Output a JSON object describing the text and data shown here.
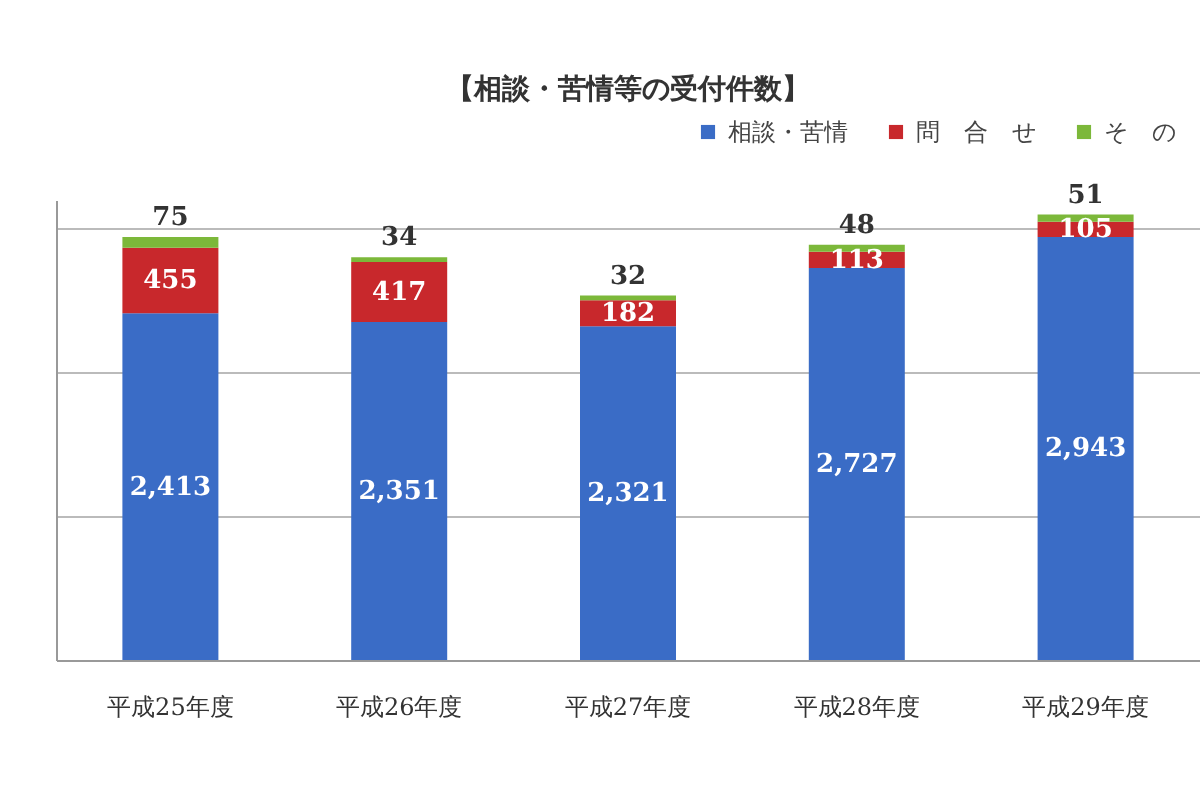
{
  "chart_data": {
    "type": "bar",
    "title": "【相談・苦情等の受付件数】",
    "categories": [
      "平成25年度",
      "平成26年度",
      "平成27年度",
      "平成28年度",
      "平成29年度"
    ],
    "stacked": true,
    "series": [
      {
        "name": "相談・苦情",
        "color": "#3a6cc6",
        "values": [
          2413,
          2351,
          2321,
          2727,
          2943
        ],
        "value_labels": [
          "2,413",
          "2,351",
          "2,321",
          "2,727",
          "2,943"
        ]
      },
      {
        "name": "問　合　せ",
        "color": "#c8282c",
        "values": [
          455,
          417,
          182,
          113,
          105
        ],
        "value_labels": [
          "455",
          "417",
          "182",
          "113",
          "105"
        ]
      },
      {
        "name": "そ　の",
        "color": "#7cb83a",
        "values": [
          75,
          34,
          32,
          48,
          51
        ],
        "value_labels": [
          "75",
          "34",
          "32",
          "48",
          "51"
        ]
      }
    ],
    "ylim": [
      0,
      3200
    ],
    "yticks": [
      {
        "value": 0,
        "label": null
      },
      {
        "value": 1000,
        "label": null
      },
      {
        "value": 2000,
        "label": null
      },
      {
        "value": 3000,
        "label": null
      }
    ],
    "tick_labels": "x",
    "grid": "y",
    "legend": "top right"
  }
}
